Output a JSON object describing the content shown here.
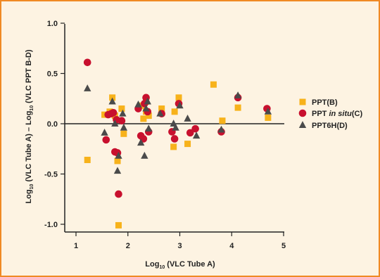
{
  "chart_data": {
    "type": "scatter",
    "xlabel_main": "Log",
    "xlabel_sub": "10",
    "xlabel_rest": " (VLC Tube A)",
    "ylabel_p1": "Log",
    "ylabel_s1": "10",
    "ylabel_p2": " (VLC Tube A) – Log",
    "ylabel_s2": "10",
    "ylabel_p3": " (VLC PPT B-D)",
    "xlim": [
      1,
      5
    ],
    "ylim": [
      -1.05,
      1.05
    ],
    "x_ticks": [
      1,
      2,
      3,
      4,
      5
    ],
    "x_tick_labels": [
      "1",
      "2",
      "3",
      "4",
      "5"
    ],
    "y_ticks": [
      1.0,
      0.5,
      0.0,
      -0.5,
      -1.0
    ],
    "y_tick_labels": [
      "1.0",
      "0.5",
      "0.0",
      "-0.5",
      "-1.0"
    ],
    "legend_position": "right",
    "reference_line_y": 0,
    "series": [
      {
        "name": "PPT(B)",
        "legend_parts": [
          {
            "text": "PPT(B)",
            "italic": false
          }
        ],
        "marker": "square",
        "color": "#f7b21b",
        "points": [
          [
            1.22,
            -0.36
          ],
          [
            1.55,
            0.09
          ],
          [
            1.65,
            0.12
          ],
          [
            1.7,
            0.26
          ],
          [
            1.75,
            0.08
          ],
          [
            1.8,
            -0.37
          ],
          [
            1.82,
            -1.01
          ],
          [
            1.88,
            0.15
          ],
          [
            1.92,
            -0.1
          ],
          [
            2.25,
            0.18
          ],
          [
            2.3,
            0.05
          ],
          [
            2.35,
            0.12
          ],
          [
            2.35,
            0.22
          ],
          [
            2.4,
            0.08
          ],
          [
            2.65,
            0.15
          ],
          [
            2.88,
            -0.23
          ],
          [
            2.9,
            0.12
          ],
          [
            2.98,
            0.26
          ],
          [
            3.15,
            -0.2
          ],
          [
            3.65,
            0.39
          ],
          [
            3.82,
            0.03
          ],
          [
            4.12,
            0.16
          ],
          [
            4.7,
            0.06
          ]
        ]
      },
      {
        "name": "PPT in situ(C)",
        "legend_parts": [
          {
            "text": "PPT ",
            "italic": false
          },
          {
            "text": "in situ",
            "italic": true
          },
          {
            "text": "(C)",
            "italic": false
          }
        ],
        "marker": "circle",
        "color": "#c8102e",
        "points": [
          [
            1.22,
            0.61
          ],
          [
            1.58,
            -0.16
          ],
          [
            1.62,
            0.09
          ],
          [
            1.68,
            0.1
          ],
          [
            1.72,
            0.11
          ],
          [
            1.75,
            -0.28
          ],
          [
            1.78,
            0.04
          ],
          [
            1.8,
            -0.29
          ],
          [
            1.82,
            -0.7
          ],
          [
            1.88,
            0.03
          ],
          [
            2.2,
            0.15
          ],
          [
            2.25,
            -0.12
          ],
          [
            2.3,
            -0.15
          ],
          [
            2.32,
            0.2
          ],
          [
            2.35,
            0.26
          ],
          [
            2.38,
            0.12
          ],
          [
            2.4,
            -0.08
          ],
          [
            2.65,
            0.1
          ],
          [
            2.85,
            -0.08
          ],
          [
            2.9,
            -0.15
          ],
          [
            2.98,
            0.2
          ],
          [
            3.2,
            -0.09
          ],
          [
            3.3,
            -0.05
          ],
          [
            3.8,
            -0.08
          ],
          [
            4.12,
            0.26
          ],
          [
            4.68,
            0.15
          ]
        ]
      },
      {
        "name": "PPT6H(D)",
        "legend_parts": [
          {
            "text": "PPT6H(D)",
            "italic": false
          }
        ],
        "marker": "triangle",
        "color": "#4a4a4a",
        "points": [
          [
            1.22,
            0.35
          ],
          [
            1.55,
            -0.09
          ],
          [
            1.7,
            0.22
          ],
          [
            1.75,
            0.0
          ],
          [
            1.8,
            -0.47
          ],
          [
            1.82,
            -0.32
          ],
          [
            1.9,
            0.1
          ],
          [
            1.92,
            -0.04
          ],
          [
            2.2,
            0.19
          ],
          [
            2.25,
            -0.19
          ],
          [
            2.32,
            -0.32
          ],
          [
            2.35,
            0.15
          ],
          [
            2.38,
            0.22
          ],
          [
            2.4,
            -0.05
          ],
          [
            2.62,
            0.1
          ],
          [
            2.88,
            0.0
          ],
          [
            2.92,
            -0.04
          ],
          [
            3.0,
            0.18
          ],
          [
            3.15,
            0.05
          ],
          [
            3.32,
            -0.12
          ],
          [
            3.8,
            -0.06
          ],
          [
            4.12,
            0.28
          ],
          [
            4.7,
            0.12
          ]
        ]
      }
    ]
  }
}
